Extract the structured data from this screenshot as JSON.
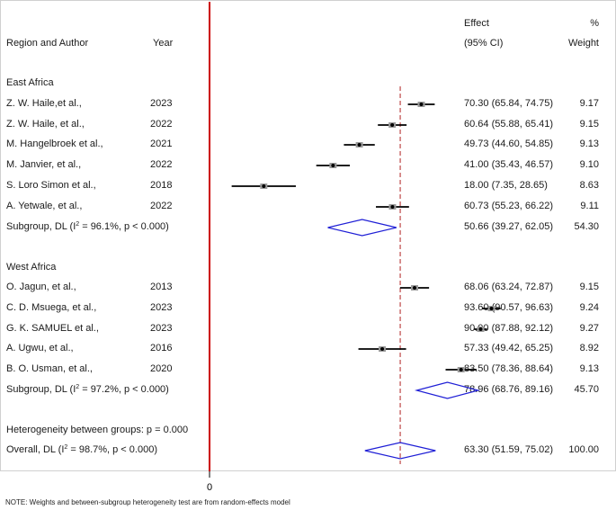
{
  "header": {
    "col_region": "Region and Author",
    "col_year": "Year",
    "col_effect_1": "Effect",
    "col_effect_2": "(95% CI)",
    "col_weight_1": "%",
    "col_weight_2": "Weight"
  },
  "chart_data": {
    "type": "forest",
    "x_axis_tick": "0",
    "overall_line_value": 63.3,
    "groups": [
      {
        "name": "East Africa",
        "studies": [
          {
            "author": "Z. W. Haile,et al.,",
            "year": "2023",
            "effect": 70.3,
            "lo": 65.84,
            "hi": 74.75,
            "ci_text": "70.30 (65.84, 74.75)",
            "weight": "9.17"
          },
          {
            "author": "Z. W. Haile, et al.,",
            "year": "2022",
            "effect": 60.64,
            "lo": 55.88,
            "hi": 65.41,
            "ci_text": "60.64 (55.88, 65.41)",
            "weight": "9.15"
          },
          {
            "author": "M. Hangelbroek et al.,",
            "year": "2021",
            "effect": 49.73,
            "lo": 44.6,
            "hi": 54.85,
            "ci_text": "49.73 (44.60, 54.85)",
            "weight": "9.13"
          },
          {
            "author": "M. Janvier, et al.,",
            "year": "2022",
            "effect": 41.0,
            "lo": 35.43,
            "hi": 46.57,
            "ci_text": "41.00 (35.43, 46.57)",
            "weight": "9.10"
          },
          {
            "author": "S. Loro Simon et al.,",
            "year": "2018",
            "effect": 18.0,
            "lo": 7.35,
            "hi": 28.65,
            "ci_text": "18.00 (7.35, 28.65)",
            "weight": "8.63"
          },
          {
            "author": "A. Yetwale, et al.,",
            "year": "2022",
            "effect": 60.73,
            "lo": 55.23,
            "hi": 66.22,
            "ci_text": "60.73 (55.23, 66.22)",
            "weight": "9.11"
          }
        ],
        "subgroup": {
          "label_prefix": "Subgroup, DL (I",
          "sup": "2",
          "label_suffix": " = 96.1%, p < 0.000)",
          "effect": 50.66,
          "lo": 39.27,
          "hi": 62.05,
          "ci_text": "50.66 (39.27, 62.05)",
          "weight": "54.30"
        }
      },
      {
        "name": "West Africa",
        "studies": [
          {
            "author": "O. Jagun, et al.,",
            "year": "2013",
            "effect": 68.06,
            "lo": 63.24,
            "hi": 72.87,
            "ci_text": "68.06 (63.24, 72.87)",
            "weight": "9.15"
          },
          {
            "author": "C. D. Msuega, et al.,",
            "year": "2023",
            "effect": 93.6,
            "lo": 90.57,
            "hi": 96.63,
            "ci_text": "93.60 (90.57, 96.63)",
            "weight": "9.24"
          },
          {
            "author": "G. K. SAMUEL et al.,",
            "year": "2023",
            "effect": 90.0,
            "lo": 87.88,
            "hi": 92.12,
            "ci_text": "90.00 (87.88, 92.12)",
            "weight": "9.27"
          },
          {
            "author": "A. Ugwu, et al.,",
            "year": "2016",
            "effect": 57.33,
            "lo": 49.42,
            "hi": 65.25,
            "ci_text": "57.33 (49.42, 65.25)",
            "weight": "8.92"
          },
          {
            "author": "B. O. Usman, et al.,",
            "year": "2020",
            "effect": 83.5,
            "lo": 78.36,
            "hi": 88.64,
            "ci_text": "83.50 (78.36, 88.64)",
            "weight": "9.13"
          }
        ],
        "subgroup": {
          "label_prefix": "Subgroup, DL (I",
          "sup": "2",
          "label_suffix": " = 97.2%, p < 0.000)",
          "effect": 78.96,
          "lo": 68.76,
          "hi": 89.16,
          "ci_text": "78.96 (68.76, 89.16)",
          "weight": "45.70"
        }
      }
    ],
    "heterogeneity": "Heterogeneity between groups: p = 0.000",
    "overall": {
      "label_prefix": "Overall, DL (I",
      "sup": "2",
      "label_suffix": " = 98.7%, p < 0.000)",
      "effect": 63.3,
      "lo": 51.59,
      "hi": 75.02,
      "ci_text": "63.30 (51.59, 75.02)",
      "weight": "100.00"
    },
    "colors": {
      "null_line": "#cc0000",
      "overall_line": "#b22222",
      "diamond": "#1f1fd6",
      "ci": "#000000"
    }
  },
  "footnote": "NOTE: Weights and between-subgroup heterogeneity test are from random-effects model"
}
